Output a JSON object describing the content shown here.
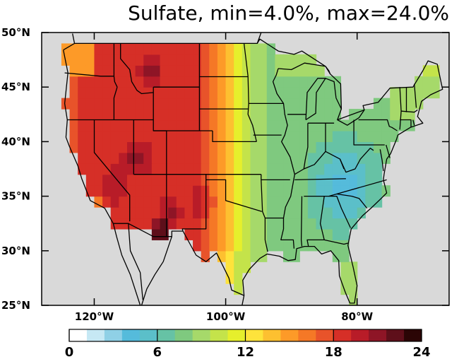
{
  "map": {
    "title": "Sulfate, min=4.0%, max=24.0%",
    "variable": "Sulfate",
    "min_value": 4.0,
    "max_value": 24.0,
    "value_unit": "%",
    "lat_range": [
      25,
      50
    ],
    "lon_range": [
      -128,
      -66
    ],
    "lat_ticks": [
      {
        "value": 25,
        "label": "25°N"
      },
      {
        "value": 30,
        "label": "30°N"
      },
      {
        "value": 35,
        "label": "35°N"
      },
      {
        "value": 40,
        "label": "40°N"
      },
      {
        "value": 45,
        "label": "45°N"
      },
      {
        "value": 50,
        "label": "50°N"
      }
    ],
    "lon_ticks": [
      {
        "value": -120,
        "label": "120°W"
      },
      {
        "value": -100,
        "label": "100°W"
      },
      {
        "value": -80,
        "label": "80°W"
      }
    ],
    "background_color": "#d9d9d9",
    "colorbar": {
      "min": 0,
      "max": 24,
      "tick_labels": [
        "0",
        "6",
        "12",
        "18",
        "24"
      ],
      "colors": [
        "#ffffff",
        "#c6e8f4",
        "#8fd0e6",
        "#55bbdb",
        "#5bbfc9",
        "#66c2a5",
        "#7fc97f",
        "#a6d96a",
        "#c4e34a",
        "#e6ef2c",
        "#fee33b",
        "#fdc030",
        "#fd9a28",
        "#f57826",
        "#e8532a",
        "#d62f27",
        "#b81c28",
        "#8e1526",
        "#5e0f1a",
        "#2b0505"
      ]
    }
  }
}
